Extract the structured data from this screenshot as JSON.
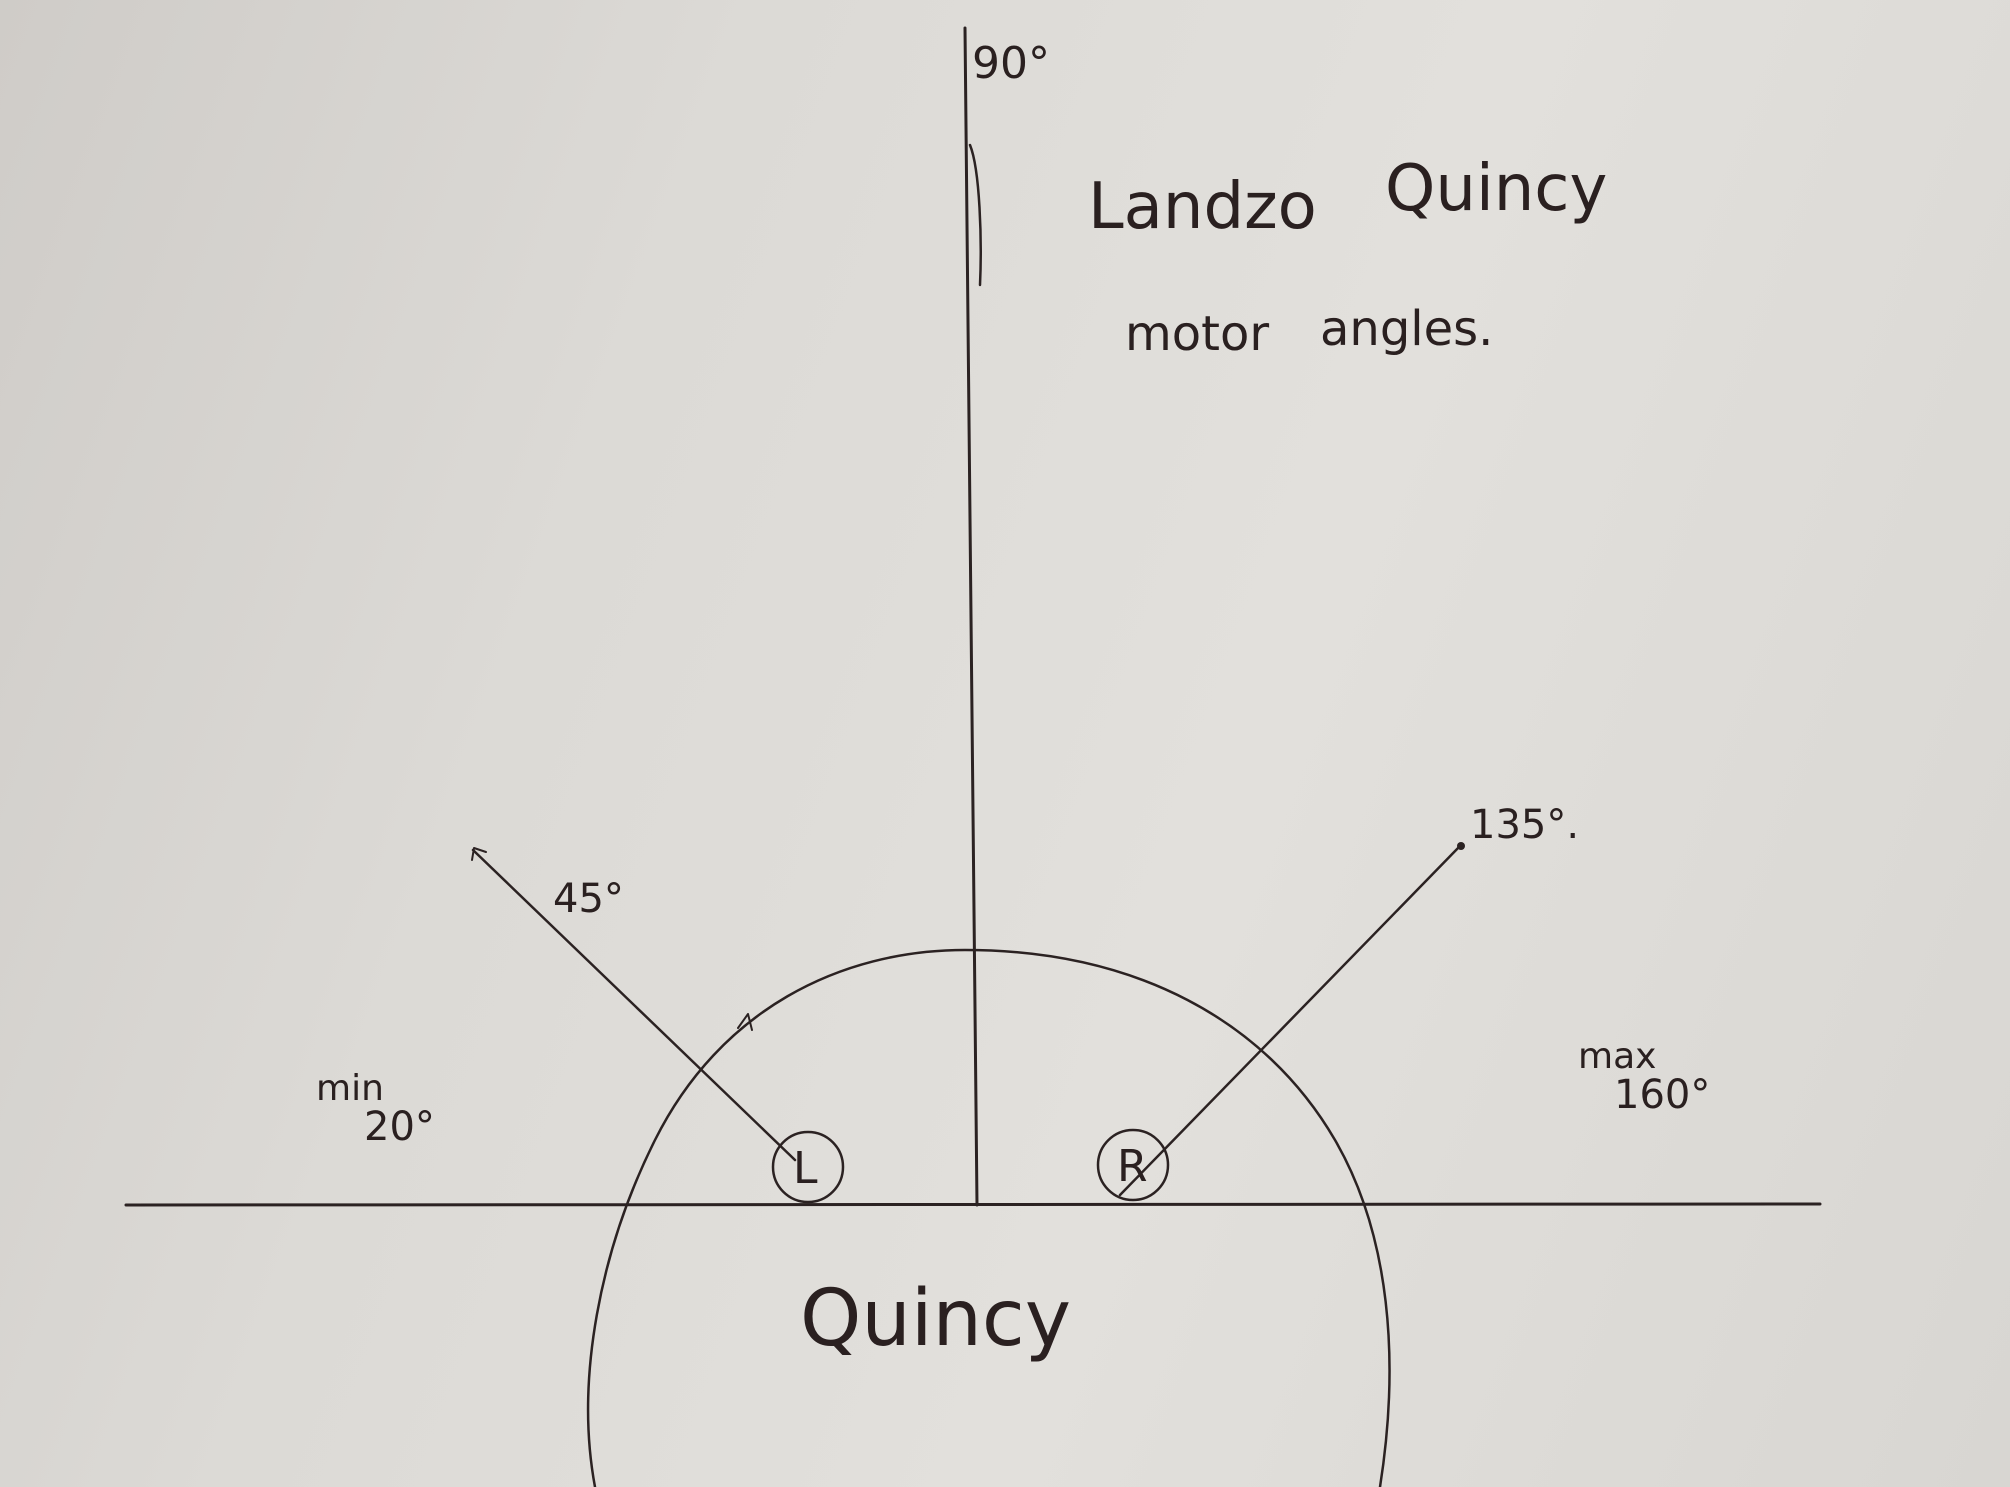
{
  "title": {
    "line1_left": "Landzo",
    "line1_right": "Quincy",
    "line2_left": "motor",
    "line2_right": "angles."
  },
  "robot": {
    "body_label": "Quincy",
    "left_motor_label": "L",
    "right_motor_label": "R"
  },
  "angles": {
    "vertical": "90°",
    "left_arm": "45°",
    "right_arm": "135°.",
    "min_label": "min",
    "min_value": "20°",
    "max_label": "max",
    "max_value": "160°"
  },
  "colors": {
    "ink": "#2b2222",
    "paper": "#dedcd8"
  }
}
